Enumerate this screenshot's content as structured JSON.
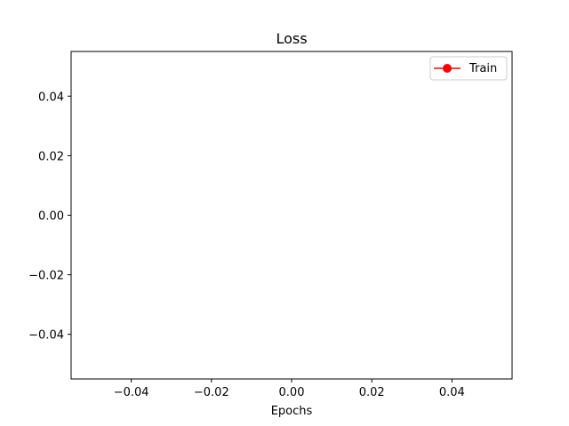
{
  "chart_data": {
    "type": "line",
    "title": "Loss",
    "xlabel": "Epochs",
    "ylabel": "",
    "xlim": [
      -0.055,
      0.055
    ],
    "ylim": [
      -0.055,
      0.055
    ],
    "xticks": [
      -0.04,
      -0.02,
      0.0,
      0.02,
      0.04
    ],
    "yticks": [
      -0.04,
      -0.02,
      0.0,
      0.02,
      0.04
    ],
    "xtick_labels": [
      "−0.04",
      "−0.02",
      "0.00",
      "0.02",
      "0.04"
    ],
    "ytick_labels": [
      "−0.04",
      "−0.02",
      "0.00",
      "0.02",
      "0.04"
    ],
    "grid": false,
    "legend_position": "top-right",
    "series": [
      {
        "name": "Train",
        "color": "#ff0000",
        "marker": "circle",
        "x": [],
        "y": []
      }
    ]
  }
}
